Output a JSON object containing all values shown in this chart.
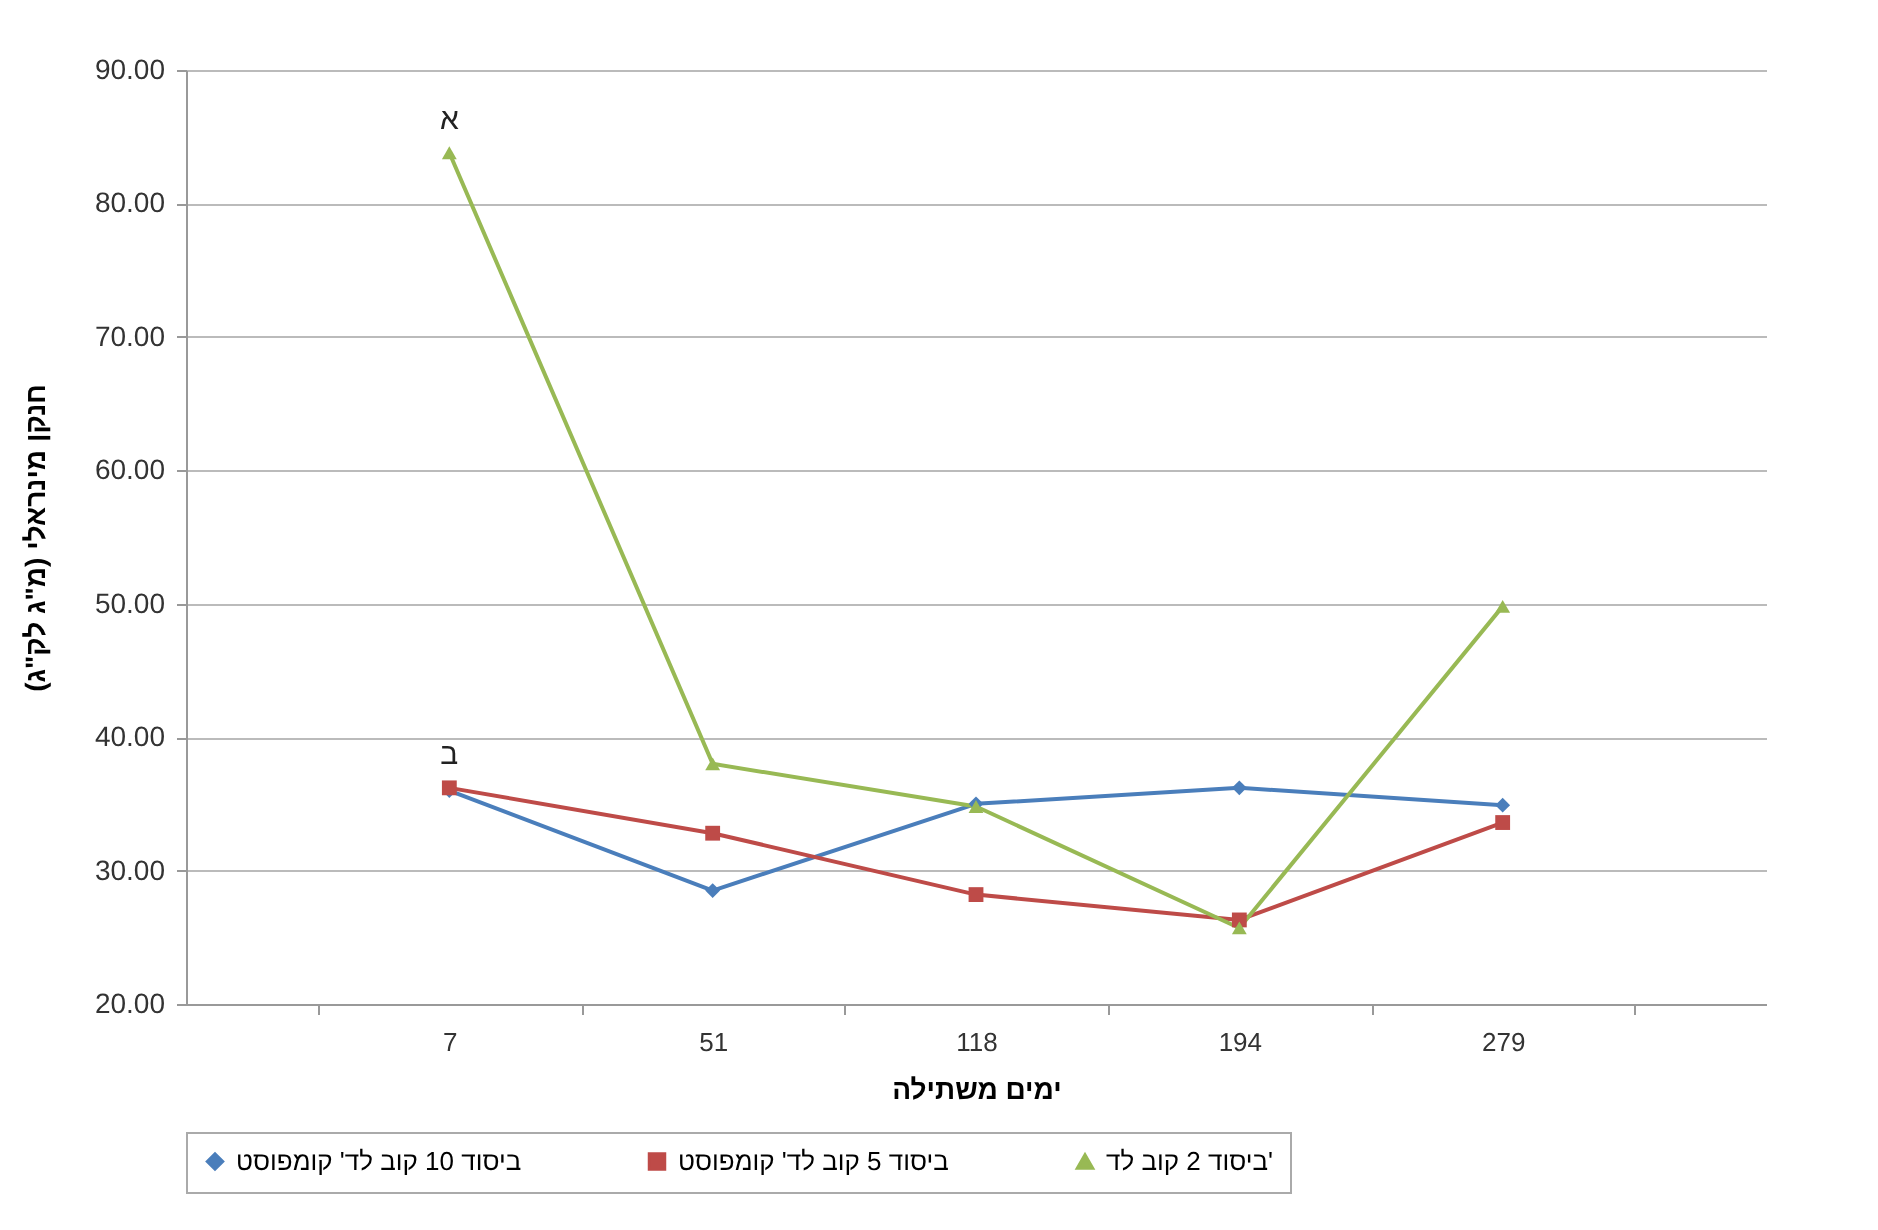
{
  "chart_data": {
    "type": "line",
    "xlabel": "ימים משתילה",
    "ylabel": "חנקן מינראלי (מ\"ג לק\"ג)",
    "categories": [
      "7",
      "51",
      "118",
      "194",
      "279"
    ],
    "series": [
      {
        "name": "ביסוד 10 קוב לד' קומפוסט",
        "color": "#4a7ebb",
        "marker": "diamond",
        "values": [
          36.0,
          28.5,
          35.0,
          36.2,
          34.9
        ]
      },
      {
        "name": "ביסוד 5 קוב לד' קומפוסט",
        "color": "#be4b48",
        "marker": "square",
        "values": [
          36.2,
          32.8,
          28.2,
          26.3,
          33.6
        ]
      },
      {
        "name": "ביסוד 2 קוב לד'",
        "color": "#98b954",
        "marker": "triangle",
        "values": [
          83.8,
          38.0,
          34.8,
          25.7,
          49.8
        ]
      }
    ],
    "ylim": [
      20,
      90
    ],
    "yticks": [
      {
        "value": 20,
        "label": "20.00"
      },
      {
        "value": 30,
        "label": "30.00"
      },
      {
        "value": 40,
        "label": "40.00"
      },
      {
        "value": 50,
        "label": "50.00"
      },
      {
        "value": 60,
        "label": "60.00"
      },
      {
        "value": 70,
        "label": "70.00"
      },
      {
        "value": 80,
        "label": "80.00"
      },
      {
        "value": 90,
        "label": "90.00"
      }
    ],
    "annotations": [
      {
        "text": "א",
        "x": "7",
        "y": 83.8
      },
      {
        "text": "ב",
        "x": "7",
        "y": 36.2
      }
    ],
    "grid": "y",
    "legend": "bottom",
    "line_style": "solid"
  }
}
